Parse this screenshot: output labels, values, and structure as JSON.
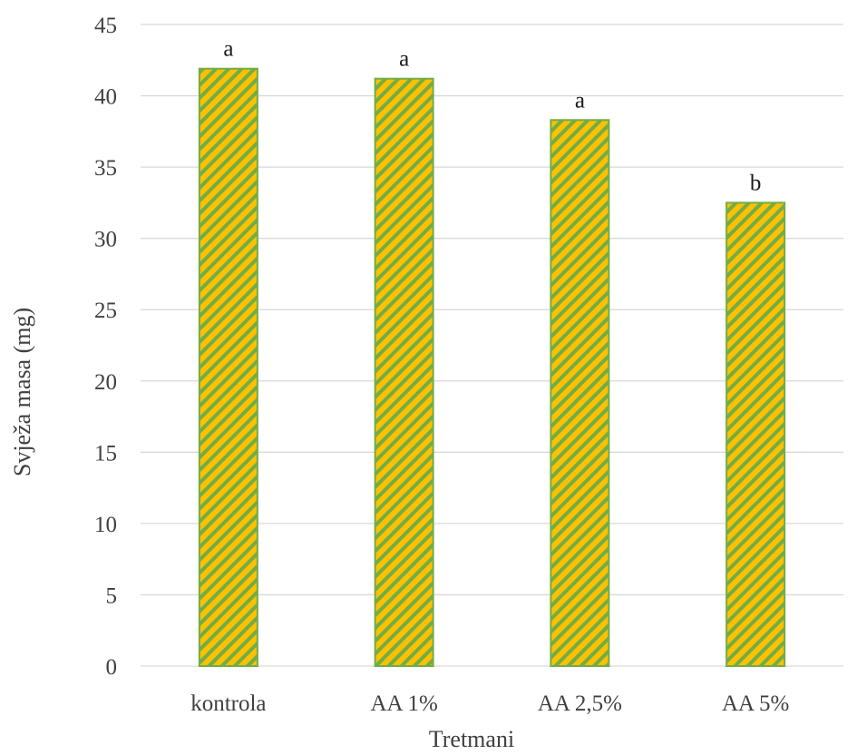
{
  "chart_data": {
    "type": "bar",
    "title": "",
    "xlabel": "Tretmani",
    "ylabel": "Svježa masa (mg)",
    "categories": [
      "kontrola",
      "AA 1%",
      "AA 2,5%",
      "AA 5%"
    ],
    "values": [
      41.9,
      41.2,
      38.3,
      32.5
    ],
    "data_labels": [
      "a",
      "a",
      "a",
      "b"
    ],
    "ylim": [
      0,
      45
    ],
    "yticks": [
      0,
      5,
      10,
      15,
      20,
      25,
      30,
      35,
      40,
      45
    ],
    "grid": true,
    "legend": "none",
    "colors": {
      "bar_fill": "#ffc000",
      "bar_hatch": "#70ad47",
      "grid": "#d9d9d9",
      "text": "#404040"
    }
  }
}
